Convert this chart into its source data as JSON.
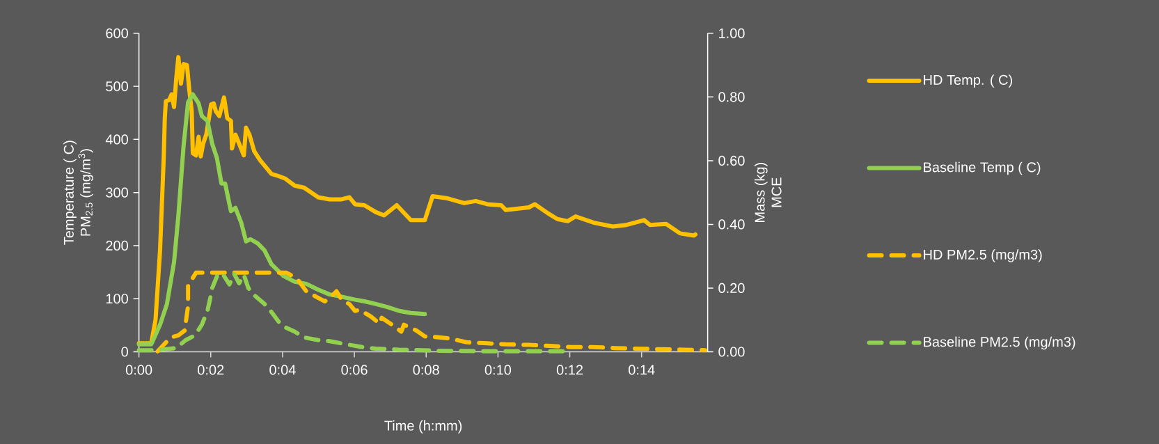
{
  "chart_data": {
    "type": "line",
    "xlabel": "Time (h:mm)",
    "ylabel": "Temperature ( C) PM$_{2.5}$ (mg/m$^{3}$)",
    "y2label": "Mass (kg) MCE",
    "xlim": [
      0,
      0.264
    ],
    "ylim": [
      0,
      600
    ],
    "y2lim": [
      0,
      1
    ],
    "xticks": [
      {
        "value": 0,
        "label": "0:00"
      },
      {
        "value": 0.03333,
        "label": "0:02"
      },
      {
        "value": 0.06667,
        "label": "0:04"
      },
      {
        "value": 0.1,
        "label": "0:06"
      },
      {
        "value": 0.13333,
        "label": "0:08"
      },
      {
        "value": 0.16667,
        "label": "0:10"
      },
      {
        "value": 0.2,
        "label": "0:12"
      },
      {
        "value": 0.23333,
        "label": "0:14"
      }
    ],
    "yticks": [
      0,
      100,
      200,
      300,
      400,
      500,
      600
    ],
    "y2ticks": [
      {
        "value": 0,
        "label": "0.00"
      },
      {
        "value": 0.2,
        "label": "0.20"
      },
      {
        "value": 0.4,
        "label": "0.40"
      },
      {
        "value": 0.6,
        "label": "0.60"
      },
      {
        "value": 0.8,
        "label": "0.80"
      },
      {
        "value": 1,
        "label": "1.00"
      }
    ],
    "legend": "right",
    "grid": false,
    "series": [
      {
        "name": "HD Temp. ( C)",
        "color": "#ffc000",
        "line_style": "solid",
        "x": [
          0,
          0.0057,
          0.0077,
          0.0098,
          0.0115,
          0.012,
          0.0125,
          0.014,
          0.0152,
          0.0163,
          0.0173,
          0.0183,
          0.0195,
          0.0207,
          0.0223,
          0.0233,
          0.0245,
          0.025,
          0.0265,
          0.0277,
          0.0287,
          0.0298,
          0.0313,
          0.0335,
          0.0347,
          0.0357,
          0.0373,
          0.0395,
          0.041,
          0.0427,
          0.0432,
          0.0448,
          0.0465,
          0.0487,
          0.0497,
          0.0513,
          0.0535,
          0.0562,
          0.0615,
          0.0648,
          0.068,
          0.0723,
          0.0767,
          0.0832,
          0.0885,
          0.0938,
          0.0977,
          0.1003,
          0.1047,
          0.11,
          0.1138,
          0.1197,
          0.1262,
          0.1327,
          0.1363,
          0.1433,
          0.151,
          0.1563,
          0.1617,
          0.1682,
          0.1703,
          0.181,
          0.1838,
          0.1898,
          0.1942,
          0.199,
          0.2027,
          0.2113,
          0.22,
          0.2263,
          0.2345,
          0.2372,
          0.2447,
          0.2512,
          0.2577,
          0.2583
        ],
        "values": [
          16,
          16,
          60,
          191,
          365,
          440,
          472,
          474,
          485,
          461,
          514,
          555,
          505,
          542,
          540,
          496,
          453,
          374,
          370,
          405,
          368,
          392,
          410,
          466,
          468,
          453,
          444,
          479,
          440,
          435,
          383,
          409,
          392,
          370,
          422,
          409,
          378,
          361,
          335,
          331,
          326,
          313,
          309,
          291,
          287,
          287,
          291,
          278,
          276,
          263,
          257,
          276,
          248,
          248,
          293,
          289,
          280,
          284,
          278,
          276,
          267,
          272,
          278,
          261,
          250,
          246,
          255,
          243,
          236,
          239,
          248,
          239,
          241,
          223,
          219,
          221
        ]
      },
      {
        "name": "Baseline Temp ( C)",
        "color": "#92d050",
        "line_style": "solid",
        "x": [
          0,
          0.0057,
          0.0098,
          0.013,
          0.0163,
          0.0183,
          0.0207,
          0.0228,
          0.025,
          0.0277,
          0.0292,
          0.0318,
          0.034,
          0.0362,
          0.0383,
          0.04,
          0.0427,
          0.0448,
          0.0475,
          0.0497,
          0.0518,
          0.0552,
          0.0583,
          0.0615,
          0.067,
          0.0723,
          0.0777,
          0.0832,
          0.0885,
          0.0938,
          0.0993,
          0.1047,
          0.11,
          0.1155,
          0.1208,
          0.1262,
          0.1327
        ],
        "values": [
          14,
          14,
          51,
          90,
          169,
          256,
          387,
          470,
          485,
          468,
          444,
          435,
          392,
          365,
          317,
          317,
          265,
          271,
          243,
          208,
          212,
          204,
          191,
          165,
          143,
          132,
          128,
          117,
          108,
          104,
          99,
          95,
          90,
          84,
          77,
          73,
          71
        ]
      },
      {
        "name": "HD PM2.5 (mg/m3)",
        "color": "#ffc000",
        "line_style": "dashed",
        "x": [
          0.0087,
          0.0147,
          0.0183,
          0.0212,
          0.0228,
          0.0228,
          0.0265,
          0.0572,
          0.0685,
          0.0733,
          0.0777,
          0.0803,
          0.0863,
          0.089,
          0.0917,
          0.0943,
          0.0977,
          0.1003,
          0.1025,
          0.1078,
          0.1117,
          0.1127,
          0.1175,
          0.1218,
          0.123,
          0.1288,
          0.1327,
          0.1348,
          0.1445,
          0.152,
          0.1617,
          0.1703,
          0.181,
          0.1908,
          0.2005,
          0.2102,
          0.221,
          0.2307,
          0.2413,
          0.2522,
          0.2628
        ],
        "values": [
          1,
          27,
          31,
          40,
          86,
          125,
          149,
          149,
          149,
          138,
          114,
          108,
          95,
          103,
          114,
          97,
          90,
          77,
          79,
          66,
          53,
          64,
          51,
          38,
          51,
          40,
          29,
          29,
          25,
          18,
          16,
          14,
          13,
          11,
          9,
          9,
          7,
          6,
          5,
          4,
          3
        ]
      },
      {
        "name": "Baseline PM2.5 (mg/m3)",
        "color": "#92d050",
        "line_style": "dashed",
        "x": [
          0,
          0.0077,
          0.0173,
          0.0217,
          0.026,
          0.0292,
          0.0318,
          0.033,
          0.034,
          0.0367,
          0.0388,
          0.042,
          0.0442,
          0.0465,
          0.0487,
          0.0508,
          0.054,
          0.0583,
          0.0615,
          0.0648,
          0.068,
          0.0723,
          0.0767,
          0.0832,
          0.0885,
          0.0938,
          0.0993,
          0.1047,
          0.11,
          0.1208,
          0.1315,
          0.139,
          0.1617,
          0.1988
        ],
        "values": [
          3,
          3,
          7,
          22,
          31,
          51,
          77,
          99,
          120,
          147,
          147,
          127,
          147,
          129,
          145,
          120,
          105,
          90,
          75,
          57,
          46,
          38,
          27,
          22,
          20,
          16,
          12,
          8,
          6,
          4,
          3,
          2,
          1,
          1
        ]
      }
    ]
  }
}
